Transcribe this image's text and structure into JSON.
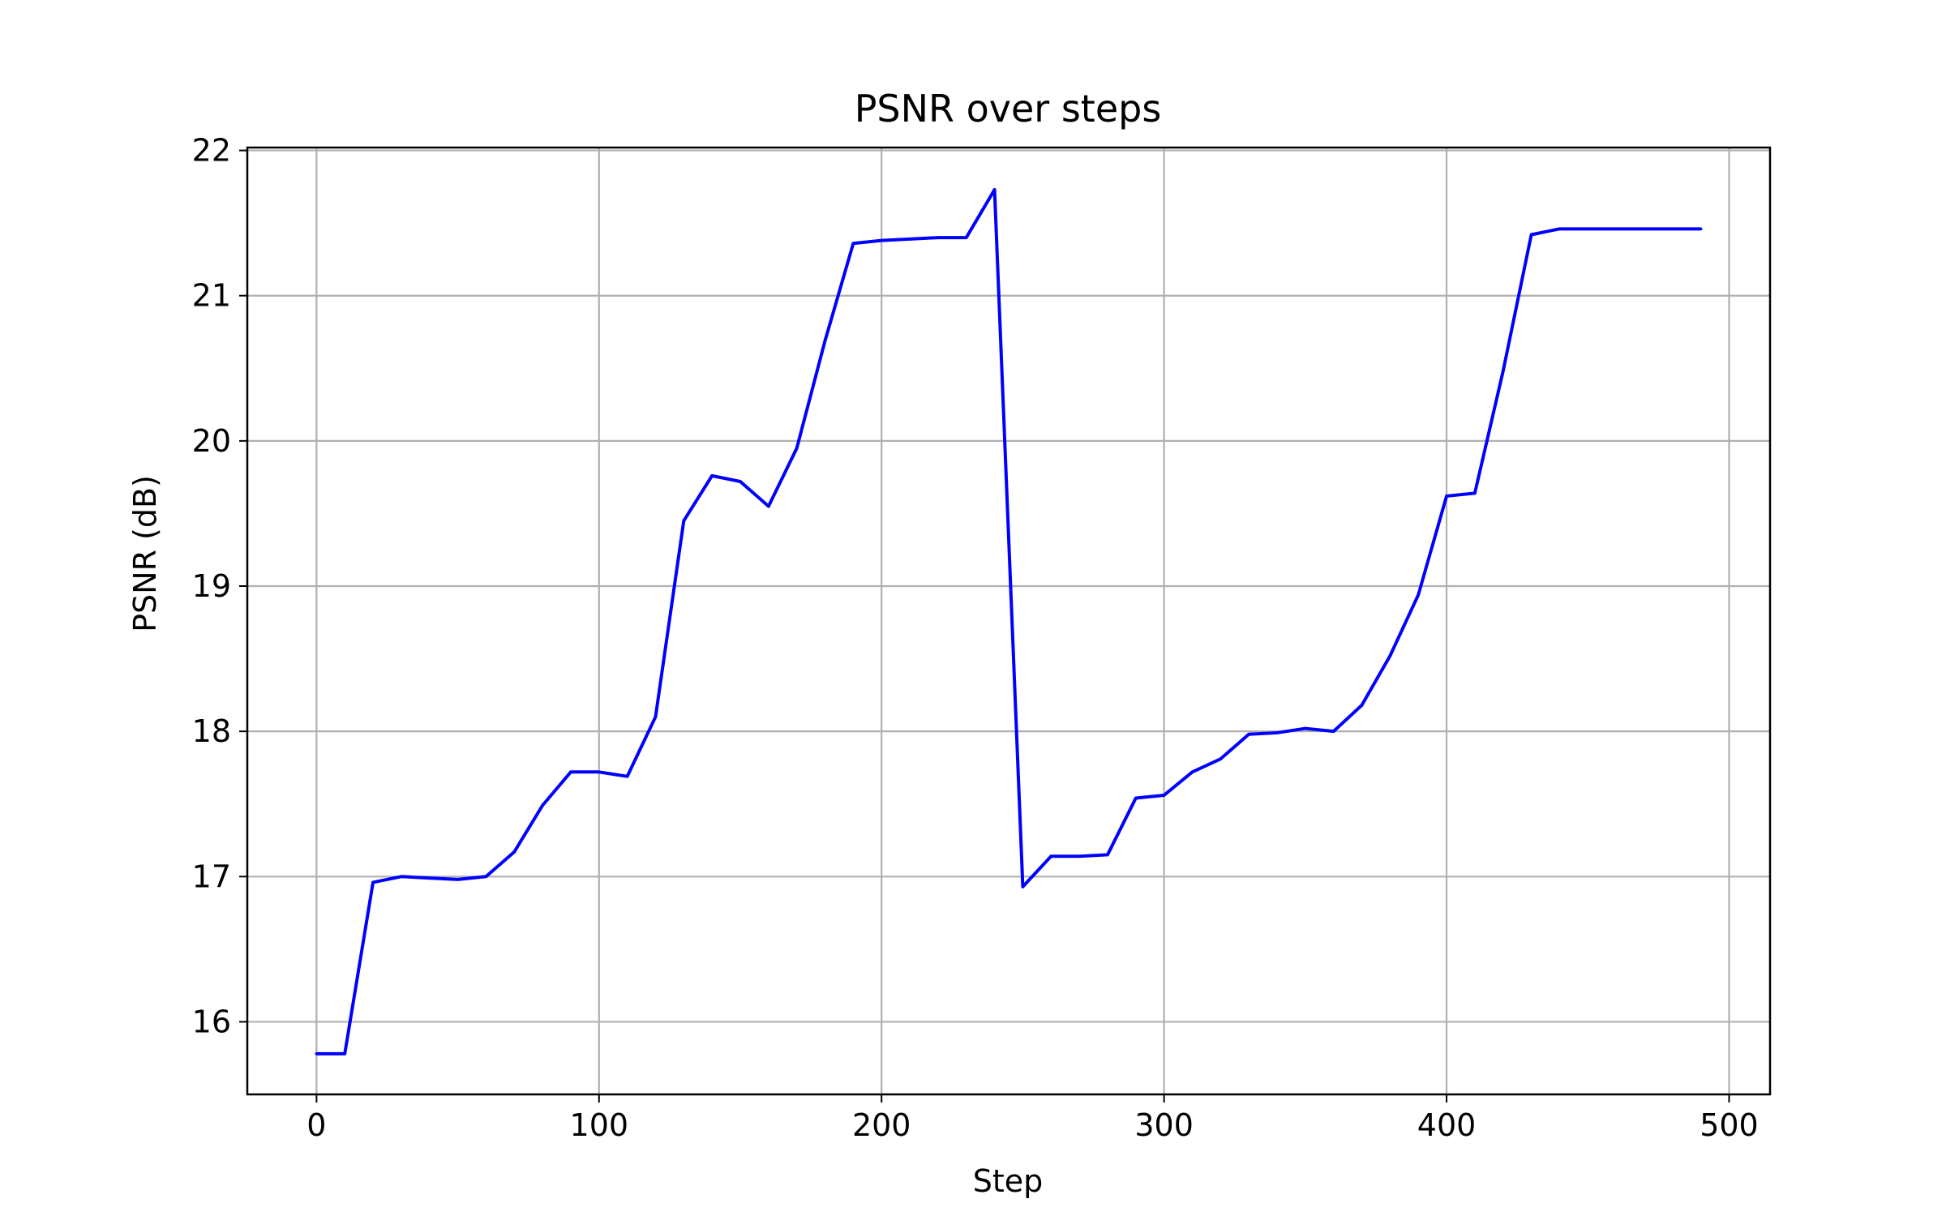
{
  "chart_data": {
    "type": "line",
    "title": "PSNR over steps",
    "xlabel": "Step",
    "ylabel": "PSNR (dB)",
    "xlim": [
      -24.5,
      514.5
    ],
    "ylim": [
      15.5,
      22.02
    ],
    "xticks": [
      0,
      100,
      200,
      300,
      400,
      500
    ],
    "yticks": [
      16,
      17,
      18,
      19,
      20,
      21,
      22
    ],
    "grid": true,
    "line_color": "#0000ff",
    "grid_color": "#b0b0b0",
    "series": [
      {
        "x": [
          0,
          10,
          20,
          30,
          40,
          50,
          60,
          70,
          80,
          90,
          100,
          110,
          120,
          130,
          140,
          150,
          160,
          170,
          180,
          190,
          200,
          210,
          220,
          230,
          240,
          250,
          260,
          270,
          280,
          290,
          300,
          310,
          320,
          330,
          340,
          350,
          360,
          370,
          380,
          390,
          400,
          410,
          420,
          430,
          440,
          450,
          460,
          470,
          480,
          490
        ],
        "y": [
          15.78,
          15.78,
          16.96,
          17.0,
          16.99,
          16.98,
          17.0,
          17.17,
          17.49,
          17.72,
          17.72,
          17.69,
          18.1,
          19.45,
          19.76,
          19.72,
          19.55,
          19.95,
          20.69,
          21.36,
          21.38,
          21.39,
          21.4,
          21.4,
          21.73,
          16.93,
          17.14,
          17.14,
          17.15,
          17.54,
          17.56,
          17.72,
          17.81,
          17.98,
          17.99,
          18.02,
          18.0,
          18.18,
          18.52,
          18.94,
          19.62,
          19.64,
          20.48,
          21.42,
          21.46,
          21.46,
          21.46,
          21.46,
          21.46,
          21.46
        ]
      }
    ]
  }
}
